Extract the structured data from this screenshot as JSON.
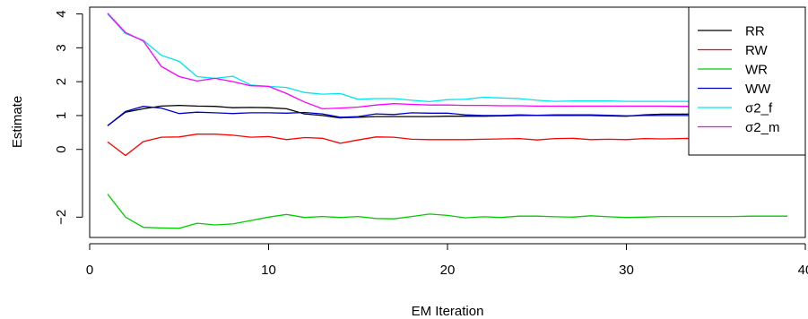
{
  "chart_data": {
    "type": "line",
    "title": "",
    "xlabel": "EM Iteration",
    "ylabel": "Estimate",
    "xlim": [
      0,
      40
    ],
    "ylim": [
      -2.6,
      4.2
    ],
    "xticks": [
      0,
      10,
      20,
      30,
      40
    ],
    "yticks": [
      -2,
      0,
      1,
      2,
      3,
      4
    ],
    "ytick_labels": [
      "−2",
      "0",
      "1",
      "2",
      "3",
      "4"
    ],
    "grid": false,
    "legend_position": "top-right",
    "x": [
      1,
      2,
      3,
      4,
      5,
      6,
      7,
      8,
      9,
      10,
      11,
      12,
      13,
      14,
      15,
      16,
      17,
      18,
      19,
      20,
      21,
      22,
      23,
      24,
      25,
      26,
      27,
      28,
      29,
      30,
      31,
      32,
      33,
      34,
      35,
      36,
      37,
      38,
      39
    ],
    "series": [
      {
        "name": "RR",
        "color": "#000000",
        "values": [
          0.7,
          1.1,
          1.2,
          1.28,
          1.3,
          1.28,
          1.27,
          1.23,
          1.24,
          1.23,
          1.2,
          1.05,
          1.0,
          0.93,
          0.95,
          0.97,
          0.97,
          0.97,
          0.97,
          0.98,
          0.98,
          0.98,
          0.99,
          1.0,
          1.0,
          1.0,
          1.0,
          1.0,
          0.99,
          0.98,
          1.02,
          1.04,
          1.04,
          1.05,
          1.04,
          1.04,
          1.04,
          1.04,
          1.05
        ]
      },
      {
        "name": "RW",
        "color": "#ff0000",
        "values": [
          0.22,
          -0.18,
          0.23,
          0.36,
          0.37,
          0.45,
          0.45,
          0.42,
          0.36,
          0.38,
          0.29,
          0.35,
          0.33,
          0.18,
          0.28,
          0.37,
          0.36,
          0.3,
          0.29,
          0.29,
          0.29,
          0.3,
          0.31,
          0.32,
          0.28,
          0.32,
          0.33,
          0.29,
          0.3,
          0.29,
          0.32,
          0.31,
          0.32,
          0.33,
          0.32,
          0.33,
          0.33,
          0.33,
          0.33
        ]
      },
      {
        "name": "WR",
        "color": "#00cc00",
        "values": [
          -1.32,
          -2.0,
          -2.3,
          -2.32,
          -2.33,
          -2.18,
          -2.23,
          -2.2,
          -2.1,
          -2.0,
          -1.92,
          -2.01,
          -1.98,
          -2.01,
          -1.98,
          -2.04,
          -2.05,
          -1.98,
          -1.91,
          -1.95,
          -2.02,
          -1.99,
          -2.01,
          -1.97,
          -1.97,
          -1.99,
          -2.0,
          -1.96,
          -1.99,
          -2.01,
          -2.0,
          -1.98,
          -1.98,
          -1.98,
          -1.98,
          -1.98,
          -1.97,
          -1.97,
          -1.97
        ]
      },
      {
        "name": "WW",
        "color": "#0000cc",
        "values": [
          0.7,
          1.12,
          1.27,
          1.22,
          1.06,
          1.1,
          1.08,
          1.06,
          1.08,
          1.08,
          1.07,
          1.09,
          1.05,
          0.95,
          0.97,
          1.05,
          1.03,
          1.08,
          1.07,
          1.07,
          1.02,
          1.0,
          1.0,
          1.02,
          1.01,
          1.02,
          1.02,
          1.02,
          1.01,
          0.99,
          1.0,
          1.0,
          1.0,
          1.0,
          1.01,
          1.0,
          1.0,
          0.99,
          0.99
        ]
      },
      {
        "name": "σ2_f",
        "color": "#00e5ee",
        "values": [
          4.0,
          3.42,
          3.22,
          2.78,
          2.6,
          2.15,
          2.1,
          2.16,
          1.9,
          1.86,
          1.83,
          1.68,
          1.63,
          1.65,
          1.48,
          1.5,
          1.5,
          1.45,
          1.41,
          1.47,
          1.48,
          1.54,
          1.52,
          1.5,
          1.45,
          1.42,
          1.43,
          1.43,
          1.43,
          1.42,
          1.42,
          1.42,
          1.42,
          1.41,
          1.41,
          1.41,
          1.41,
          1.41,
          1.41
        ]
      },
      {
        "name": "σ2_m",
        "color": "#ff00ff",
        "values": [
          4.02,
          3.45,
          3.2,
          2.45,
          2.15,
          2.02,
          2.1,
          2.0,
          1.88,
          1.86,
          1.65,
          1.4,
          1.2,
          1.22,
          1.25,
          1.31,
          1.35,
          1.33,
          1.31,
          1.31,
          1.3,
          1.3,
          1.29,
          1.29,
          1.28,
          1.28,
          1.28,
          1.28,
          1.28,
          1.28,
          1.28,
          1.28,
          1.27,
          1.27,
          1.27,
          1.27,
          1.27,
          1.27,
          1.27
        ]
      }
    ]
  }
}
